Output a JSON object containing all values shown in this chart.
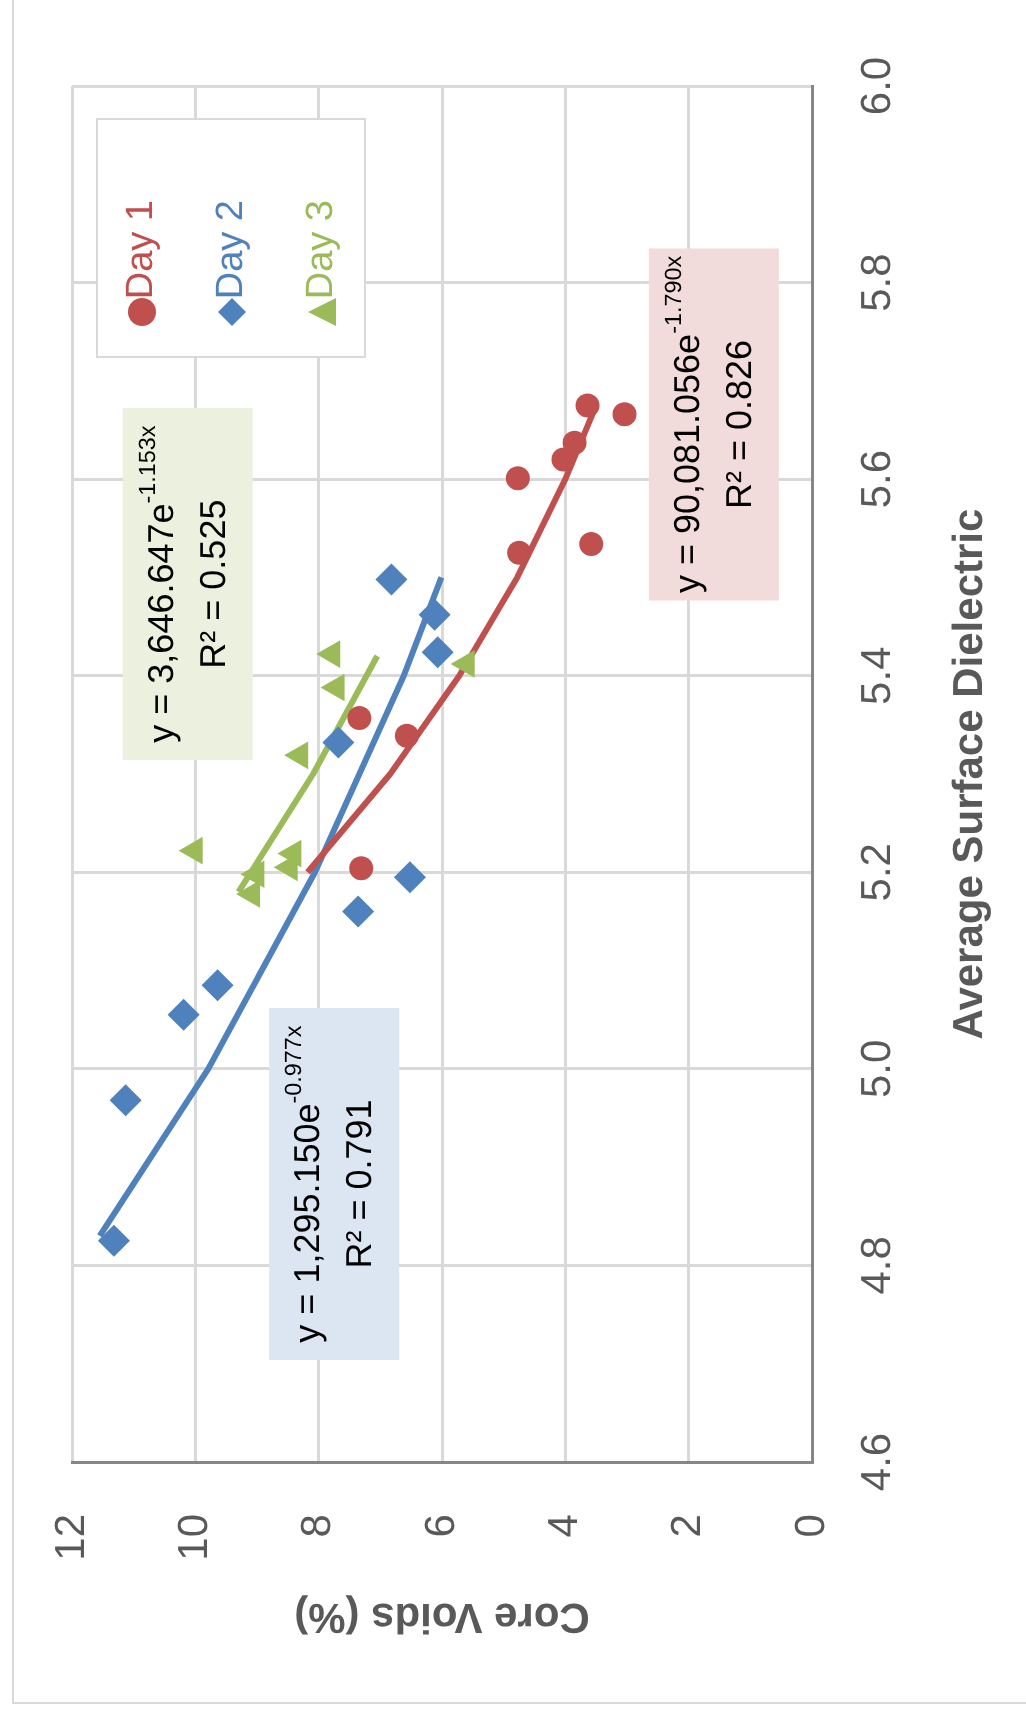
{
  "chart_data": {
    "type": "scatter",
    "xlabel": "Core Voids (%)",
    "ylabel": "Average Surface Dielectric",
    "xlim": [
      12,
      0
    ],
    "xticks": [
      0,
      2,
      4,
      6,
      8,
      10,
      12
    ],
    "ylim": [
      4.6,
      6.0
    ],
    "yticks": [
      4.6,
      4.8,
      {
        "value": 5,
        "label": "5.0"
      },
      5.2,
      5.4,
      5.6,
      5.8,
      {
        "value": 6,
        "label": "6.0"
      }
    ],
    "grid": true,
    "legend": "top left",
    "series": [
      {
        "name": "Day 1",
        "color": "#c0504d",
        "marker": "circle",
        "x": [
          3.64,
          3.04,
          3.85,
          4.03,
          4.77,
          3.58,
          4.75,
          7.34,
          6.57,
          7.31
        ],
        "values": [
          5.675,
          5.666,
          5.637,
          5.62,
          5.601,
          5.534,
          5.525,
          5.357,
          5.339,
          5.204
        ]
      },
      {
        "name": "Day 2",
        "color": "#4f81bd",
        "marker": "diamond",
        "x": [
          6.82,
          6.12,
          6.07,
          7.68,
          6.52,
          7.36,
          9.64,
          10.19,
          11.13,
          11.32
        ],
        "values": [
          5.498,
          5.462,
          5.424,
          5.332,
          5.195,
          5.16,
          5.085,
          5.055,
          4.968,
          4.825
        ]
      },
      {
        "name": "Day 3",
        "color": "#9bbb59",
        "marker": "triangle",
        "x": [
          7.78,
          7.71,
          8.3,
          10.01,
          8.41,
          8.47,
          9.01,
          9.08,
          5.6
        ],
        "values": [
          5.422,
          5.388,
          5.319,
          5.222,
          5.219,
          5.205,
          5.198,
          5.178,
          5.412
        ]
      },
      {
        "type": "line",
        "color": "#c0504d",
        "marker": "none",
        "x": [
          8.18,
          6.84,
          5.72,
          4.78,
          4.0,
          3.5
        ],
        "values": [
          5.2,
          5.3,
          5.4,
          5.5,
          5.6,
          5.675
        ]
      },
      {
        "type": "line",
        "color": "#4f81bd",
        "marker": "none",
        "x": [
          11.55,
          9.79,
          8.06,
          6.62,
          6.01
        ],
        "values": [
          4.83,
          5.0,
          5.2,
          5.4,
          5.5
        ]
      },
      {
        "type": "line",
        "color": "#9bbb59",
        "marker": "none",
        "x": [
          9.3,
          8.09,
          7.05
        ],
        "values": [
          5.18,
          5.3,
          5.42
        ]
      }
    ],
    "annotations": [
      "y = 90,081.056e$^{-1.790x}$",
      "R² = 0.826",
      "y = 1,295.150e$^{-0.977x}$",
      "R² = 0.791",
      "y = 3,646.647e$^{-1.153x}$",
      "R² = 0.525"
    ]
  }
}
